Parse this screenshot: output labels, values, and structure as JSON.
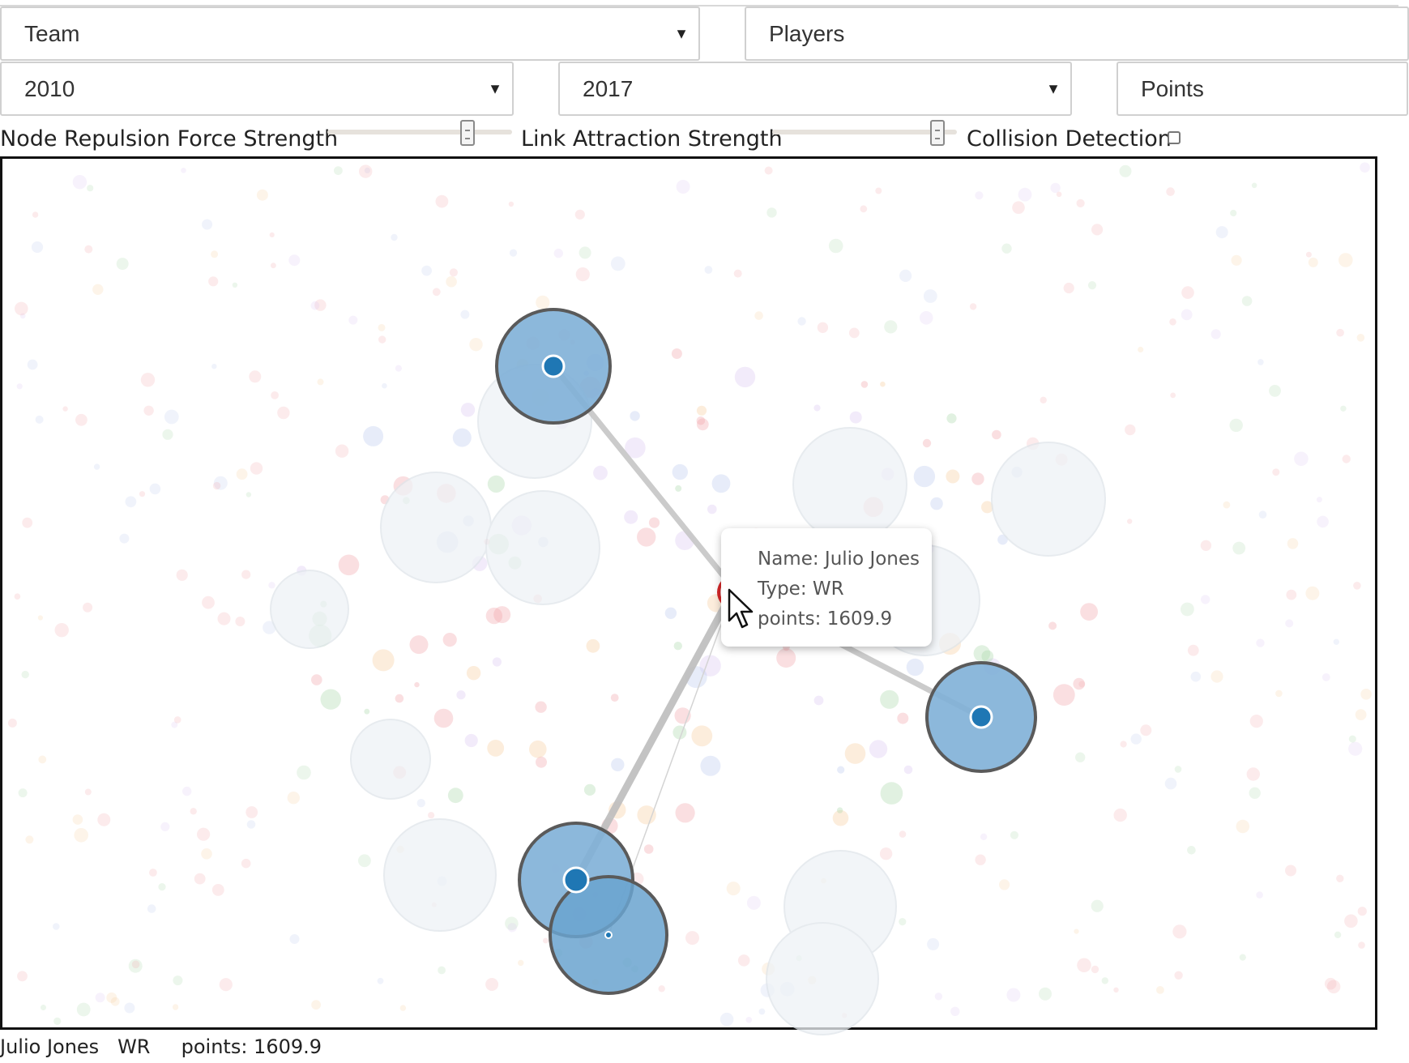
{
  "controls": {
    "group_by": {
      "value": "Team"
    },
    "entity": {
      "value": "Players"
    },
    "year_from": {
      "value": "2010"
    },
    "year_to": {
      "value": "2017"
    },
    "metric": {
      "value": "Points"
    },
    "repulsion_label": "Node Repulsion Force Strength",
    "repulsion_level": 0.78,
    "attraction_label": "Link Attraction Strength",
    "attraction_level": 0.93,
    "collision_label": "Collision Detection",
    "collision_checked": false
  },
  "tooltip": {
    "name_line": "Name: Julio Jones",
    "type_line": "Type: WR",
    "points_line": "points: 1609.9"
  },
  "status_line": "Julio Jones   WR     points: 1609.9",
  "colors": {
    "team_node_fill": "#7fb0d7",
    "team_node_stroke": "#555555",
    "team_center": "#1f77b4",
    "player_node": "#d62728",
    "faded_node": "#e6edf3",
    "link": "#c8c8c8"
  }
}
